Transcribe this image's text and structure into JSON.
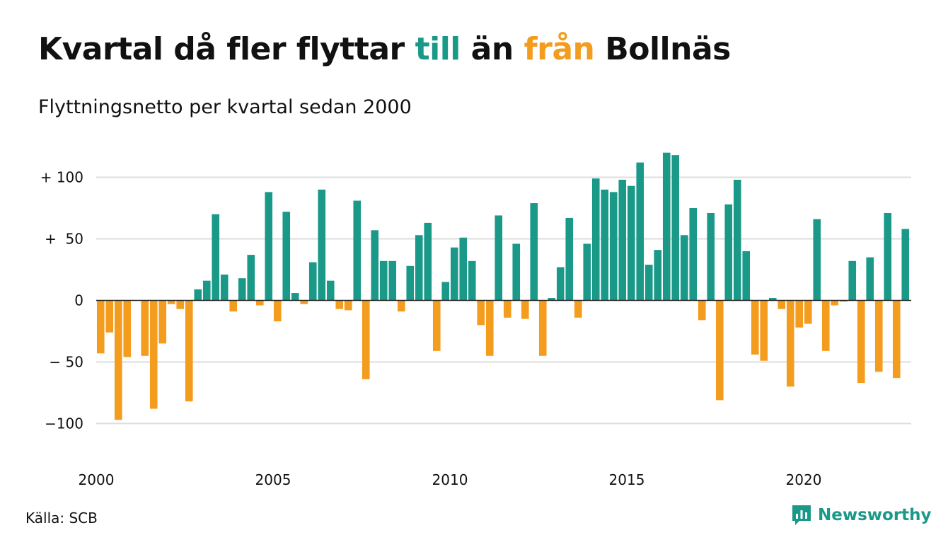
{
  "title": {
    "part1": "Kvartal då fler flyttar ",
    "pos_word": "till",
    "part2": " än ",
    "neg_word": "från",
    "part3": " Bollnäs"
  },
  "subtitle": "Flyttningsnetto per kvartal sedan 2000",
  "source": "Källa: SCB",
  "logo": {
    "text": "Newsworthy",
    "icon": "bar-chart-speech-bubble-icon"
  },
  "colors": {
    "positive": "#1a9988",
    "negative": "#f39c1d",
    "grid": "#dddddd",
    "zero": "#222222"
  },
  "chart_data": {
    "type": "bar",
    "frequency": "quarterly",
    "start": "2000 Q1",
    "ylim": [
      -125,
      125
    ],
    "yticks": [
      {
        "value": 100,
        "label": "+ 100"
      },
      {
        "value": 50,
        "label": "+  50"
      },
      {
        "value": 0,
        "label": "0"
      },
      {
        "value": -50,
        "label": "− 50"
      },
      {
        "value": -100,
        "label": "−100"
      }
    ],
    "xticks": [
      "2000",
      "2005",
      "2010",
      "2015",
      "2020"
    ],
    "grid": true,
    "values": [
      -43,
      -26,
      -97,
      -46,
      0,
      -45,
      -88,
      -35,
      -3,
      -7,
      -82,
      9,
      16,
      70,
      21,
      -9,
      18,
      37,
      -4,
      88,
      -17,
      72,
      6,
      -3,
      31,
      90,
      16,
      -7,
      -8,
      81,
      -64,
      57,
      32,
      32,
      -9,
      28,
      53,
      63,
      -41,
      15,
      43,
      51,
      32,
      -20,
      -45,
      69,
      -14,
      46,
      -15,
      79,
      -45,
      2,
      27,
      67,
      -14,
      46,
      99,
      90,
      88,
      98,
      93,
      112,
      29,
      41,
      120,
      118,
      53,
      75,
      -16,
      71,
      -81,
      78,
      98,
      40,
      -44,
      -49,
      2,
      -7,
      -70,
      -22,
      -19,
      66,
      -41,
      -4,
      -1,
      32,
      -67,
      35,
      -58,
      71,
      -63,
      58
    ]
  }
}
